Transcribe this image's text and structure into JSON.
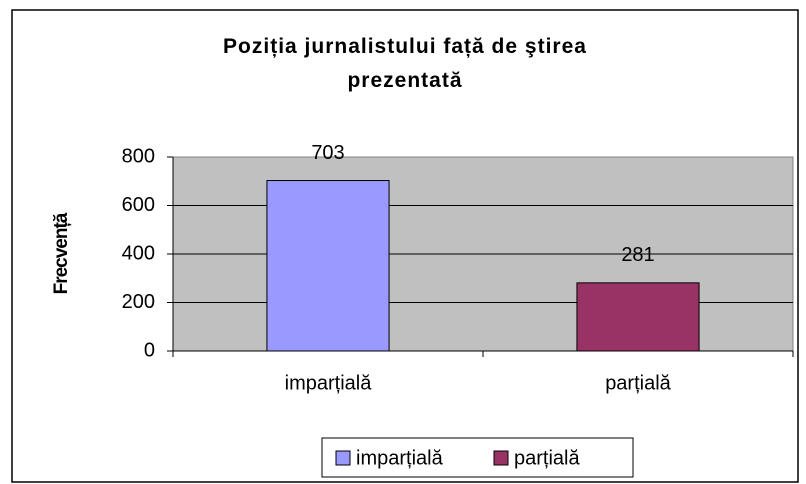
{
  "chart_data": {
    "type": "bar",
    "title": "Poziția jurnalistului față de ştirea prezentată",
    "ylabel": "Frecvență",
    "categories": [
      "imparțială",
      "parțială"
    ],
    "values": [
      703,
      281
    ],
    "colors": [
      "#9999ff",
      "#993366"
    ],
    "ylim": [
      0,
      800
    ],
    "yticks": [
      0,
      200,
      400,
      600,
      800
    ],
    "grid": true,
    "legend": "bottom"
  }
}
